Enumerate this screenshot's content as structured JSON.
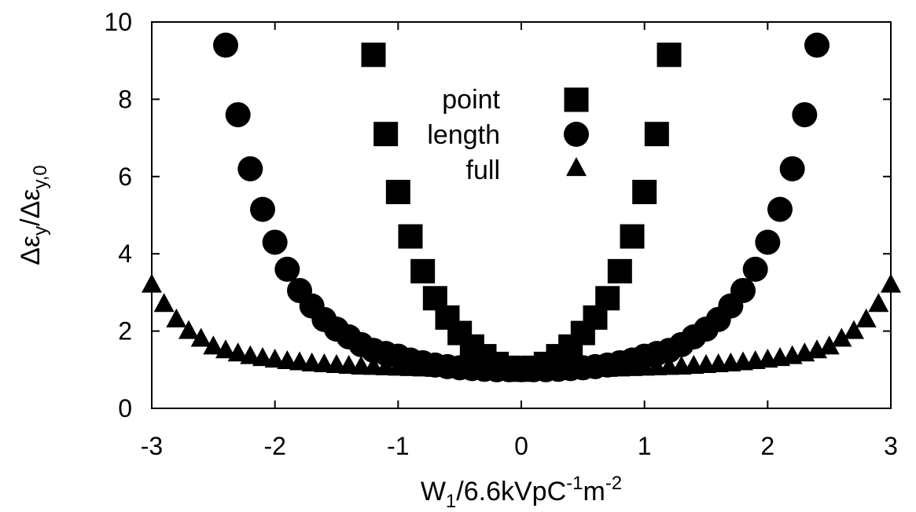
{
  "chart_data": {
    "type": "scatter",
    "title": "",
    "xlabel": {
      "base": "W",
      "sub": "1",
      "mid": "/6.6kVpC",
      "sup1": "-1",
      "mid2": "m",
      "sup2": "-2"
    },
    "ylabel": {
      "num": "Δε",
      "num_sub": "y",
      "slash": "/Δε",
      "den_sub": "y,0"
    },
    "xlim": [
      -3,
      3
    ],
    "ylim": [
      0,
      10
    ],
    "xticks": [
      -3,
      -2,
      -1,
      0,
      1,
      2,
      3
    ],
    "yticks": [
      0,
      2,
      4,
      6,
      8,
      10
    ],
    "xtick_labels": [
      "-3",
      "-2",
      "-1",
      "0",
      "1",
      "2",
      "3"
    ],
    "ytick_labels": [
      "0",
      "2",
      "4",
      "6",
      "8",
      "10"
    ],
    "grid": false,
    "legend_position": "top-center",
    "series": [
      {
        "name": "point",
        "marker": "square",
        "x": [
          -1.2,
          -1.1,
          -1.0,
          -0.9,
          -0.8,
          -0.7,
          -0.6,
          -0.5,
          -0.4,
          -0.3,
          -0.2,
          -0.1,
          0.0,
          0.1,
          0.2,
          0.3,
          0.4,
          0.5,
          0.6,
          0.7,
          0.8,
          0.9,
          1.0,
          1.1,
          1.2
        ],
        "y": [
          9.15,
          7.1,
          5.6,
          4.45,
          3.55,
          2.85,
          2.35,
          1.95,
          1.6,
          1.35,
          1.15,
          1.05,
          1.0,
          1.05,
          1.15,
          1.35,
          1.6,
          1.95,
          2.35,
          2.85,
          3.55,
          4.45,
          5.6,
          7.1,
          9.15
        ]
      },
      {
        "name": "length",
        "marker": "circle",
        "x": [
          -2.4,
          -2.3,
          -2.2,
          -2.1,
          -2.0,
          -1.9,
          -1.8,
          -1.7,
          -1.6,
          -1.5,
          -1.4,
          -1.3,
          -1.2,
          -1.1,
          -1.0,
          -0.9,
          -0.8,
          -0.7,
          -0.6,
          -0.5,
          -0.4,
          -0.3,
          -0.2,
          -0.1,
          0.0,
          0.1,
          0.2,
          0.3,
          0.4,
          0.5,
          0.6,
          0.7,
          0.8,
          0.9,
          1.0,
          1.1,
          1.2,
          1.3,
          1.4,
          1.5,
          1.6,
          1.7,
          1.8,
          1.9,
          2.0,
          2.1,
          2.2,
          2.3,
          2.4
        ],
        "y": [
          9.4,
          7.6,
          6.2,
          5.15,
          4.3,
          3.6,
          3.05,
          2.65,
          2.3,
          2.05,
          1.85,
          1.65,
          1.5,
          1.42,
          1.35,
          1.25,
          1.18,
          1.12,
          1.08,
          1.05,
          1.03,
          1.01,
          1.0,
          1.0,
          1.0,
          1.0,
          1.0,
          1.01,
          1.03,
          1.05,
          1.08,
          1.12,
          1.18,
          1.25,
          1.35,
          1.42,
          1.5,
          1.65,
          1.85,
          2.05,
          2.3,
          2.65,
          3.05,
          3.6,
          4.3,
          5.15,
          6.2,
          7.6,
          9.4
        ]
      },
      {
        "name": "full",
        "marker": "triangle",
        "x": [
          -3.0,
          -2.9,
          -2.8,
          -2.7,
          -2.6,
          -2.5,
          -2.4,
          -2.3,
          -2.2,
          -2.1,
          -2.0,
          -1.9,
          -1.8,
          -1.7,
          -1.6,
          -1.5,
          -1.4,
          -1.3,
          -1.2,
          -1.1,
          -1.0,
          -0.9,
          -0.8,
          -0.7,
          -0.6,
          -0.5,
          -0.4,
          -0.3,
          -0.2,
          -0.1,
          0.0,
          0.1,
          0.2,
          0.3,
          0.4,
          0.5,
          0.6,
          0.7,
          0.8,
          0.9,
          1.0,
          1.1,
          1.2,
          1.3,
          1.4,
          1.5,
          1.6,
          1.7,
          1.8,
          1.9,
          2.0,
          2.1,
          2.2,
          2.3,
          2.4,
          2.5,
          2.6,
          2.7,
          2.8,
          2.9,
          3.0
        ],
        "y": [
          3.2,
          2.7,
          2.3,
          2.0,
          1.8,
          1.6,
          1.5,
          1.42,
          1.35,
          1.3,
          1.26,
          1.22,
          1.19,
          1.16,
          1.14,
          1.12,
          1.1,
          1.08,
          1.07,
          1.06,
          1.05,
          1.04,
          1.03,
          1.02,
          1.02,
          1.01,
          1.01,
          1.0,
          1.0,
          1.0,
          1.0,
          1.0,
          1.0,
          1.0,
          1.01,
          1.01,
          1.02,
          1.02,
          1.03,
          1.04,
          1.05,
          1.06,
          1.07,
          1.08,
          1.1,
          1.12,
          1.14,
          1.16,
          1.19,
          1.22,
          1.26,
          1.3,
          1.35,
          1.42,
          1.5,
          1.6,
          1.8,
          2.0,
          2.3,
          2.7,
          3.2
        ]
      }
    ]
  }
}
